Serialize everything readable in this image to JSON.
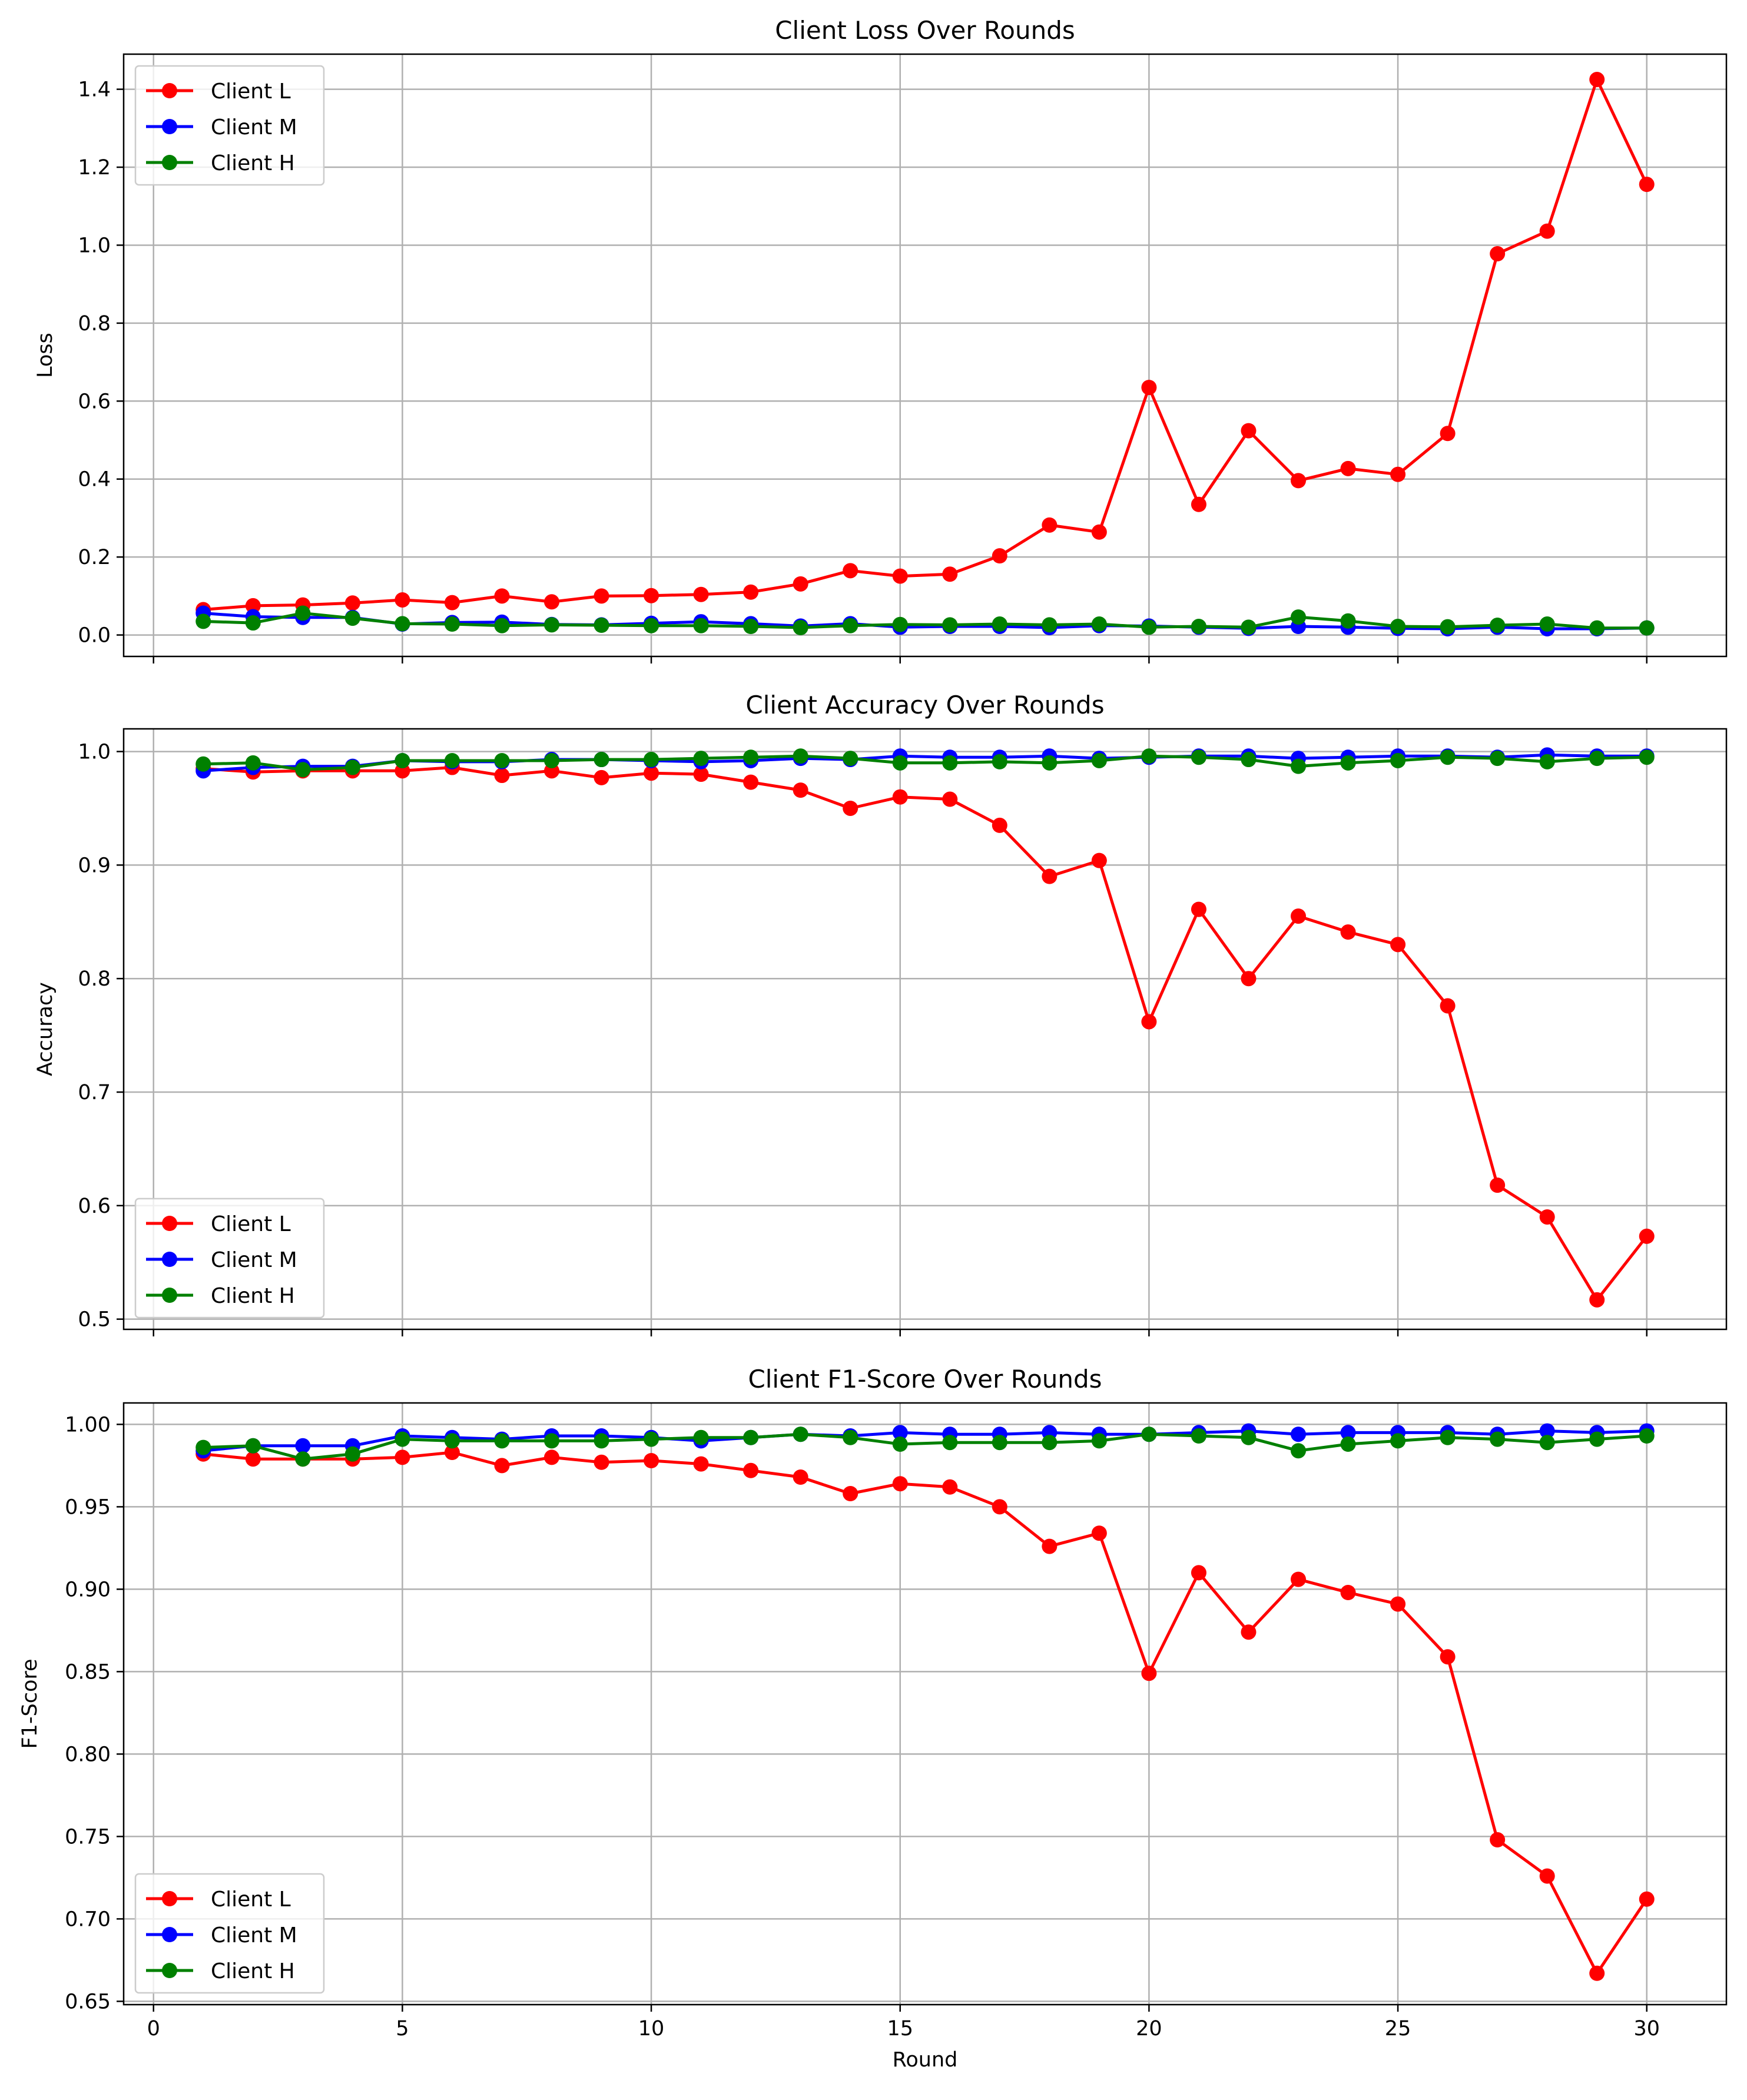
{
  "chart_data": [
    {
      "type": "line",
      "title": "Client Loss Over Rounds",
      "xlabel": "",
      "ylabel": "Loss",
      "xlim": [
        -0.6,
        31.6
      ],
      "ylim": [
        -0.055,
        1.49
      ],
      "xticks": [
        0,
        5,
        10,
        15,
        20,
        25,
        30
      ],
      "xticklabels": [],
      "yticks": [
        0.0,
        0.2,
        0.4,
        0.6,
        0.8,
        1.0,
        1.2,
        1.4
      ],
      "yticklabels": [
        "0.0",
        "0.2",
        "0.4",
        "0.6",
        "0.8",
        "1.0",
        "1.2",
        "1.4"
      ],
      "grid": true,
      "legend": "upper left",
      "x": [
        1,
        2,
        3,
        4,
        5,
        6,
        7,
        8,
        9,
        10,
        11,
        12,
        13,
        14,
        15,
        16,
        17,
        18,
        19,
        20,
        21,
        22,
        23,
        24,
        25,
        26,
        27,
        28,
        29,
        30
      ],
      "series": [
        {
          "name": "Client L",
          "color": "#ff0000",
          "values": [
            0.065,
            0.075,
            0.077,
            0.082,
            0.09,
            0.083,
            0.1,
            0.085,
            0.1,
            0.101,
            0.104,
            0.11,
            0.131,
            0.165,
            0.151,
            0.156,
            0.203,
            0.282,
            0.264,
            0.635,
            0.335,
            0.524,
            0.396,
            0.427,
            0.412,
            0.517,
            0.978,
            1.036,
            1.425,
            1.156
          ]
        },
        {
          "name": "Client M",
          "color": "#0000ff",
          "values": [
            0.056,
            0.047,
            0.045,
            0.045,
            0.028,
            0.032,
            0.033,
            0.027,
            0.026,
            0.03,
            0.034,
            0.029,
            0.023,
            0.029,
            0.02,
            0.022,
            0.022,
            0.019,
            0.024,
            0.023,
            0.02,
            0.017,
            0.022,
            0.02,
            0.017,
            0.016,
            0.02,
            0.016,
            0.016,
            0.018
          ]
        },
        {
          "name": "Client H",
          "color": "#008000",
          "values": [
            0.035,
            0.031,
            0.056,
            0.043,
            0.029,
            0.028,
            0.024,
            0.026,
            0.025,
            0.024,
            0.024,
            0.022,
            0.019,
            0.024,
            0.027,
            0.026,
            0.028,
            0.026,
            0.028,
            0.02,
            0.022,
            0.02,
            0.046,
            0.036,
            0.022,
            0.021,
            0.025,
            0.028,
            0.018,
            0.018
          ]
        }
      ]
    },
    {
      "type": "line",
      "title": "Client Accuracy Over Rounds",
      "xlabel": "",
      "ylabel": "Accuracy",
      "xlim": [
        -0.6,
        31.6
      ],
      "ylim": [
        0.491,
        1.02
      ],
      "xticks": [
        0,
        5,
        10,
        15,
        20,
        25,
        30
      ],
      "xticklabels": [],
      "yticks": [
        0.5,
        0.6,
        0.7,
        0.8,
        0.9,
        1.0
      ],
      "yticklabels": [
        "0.5",
        "0.6",
        "0.7",
        "0.8",
        "0.9",
        "1.0"
      ],
      "grid": true,
      "legend": "lower left",
      "x": [
        1,
        2,
        3,
        4,
        5,
        6,
        7,
        8,
        9,
        10,
        11,
        12,
        13,
        14,
        15,
        16,
        17,
        18,
        19,
        20,
        21,
        22,
        23,
        24,
        25,
        26,
        27,
        28,
        29,
        30
      ],
      "series": [
        {
          "name": "Client L",
          "color": "#ff0000",
          "values": [
            0.985,
            0.982,
            0.983,
            0.983,
            0.983,
            0.986,
            0.979,
            0.983,
            0.977,
            0.981,
            0.98,
            0.973,
            0.966,
            0.95,
            0.96,
            0.958,
            0.935,
            0.89,
            0.904,
            0.762,
            0.861,
            0.8,
            0.855,
            0.841,
            0.83,
            0.776,
            0.618,
            0.59,
            0.517,
            0.573
          ]
        },
        {
          "name": "Client M",
          "color": "#0000ff",
          "values": [
            0.983,
            0.986,
            0.987,
            0.987,
            0.992,
            0.991,
            0.991,
            0.993,
            0.993,
            0.992,
            0.991,
            0.992,
            0.994,
            0.993,
            0.996,
            0.995,
            0.995,
            0.996,
            0.994,
            0.995,
            0.996,
            0.996,
            0.994,
            0.995,
            0.996,
            0.996,
            0.995,
            0.997,
            0.996,
            0.996
          ]
        },
        {
          "name": "Client H",
          "color": "#008000",
          "values": [
            0.989,
            0.99,
            0.984,
            0.986,
            0.992,
            0.992,
            0.992,
            0.992,
            0.993,
            0.993,
            0.994,
            0.995,
            0.996,
            0.994,
            0.99,
            0.99,
            0.991,
            0.99,
            0.992,
            0.996,
            0.995,
            0.993,
            0.987,
            0.99,
            0.992,
            0.995,
            0.994,
            0.991,
            0.994,
            0.995
          ]
        }
      ]
    },
    {
      "type": "line",
      "title": "Client F1-Score Over Rounds",
      "xlabel": "Round",
      "ylabel": "F1-Score",
      "xlim": [
        -0.6,
        31.6
      ],
      "ylim": [
        0.648,
        1.013
      ],
      "xticks": [
        0,
        5,
        10,
        15,
        20,
        25,
        30
      ],
      "xticklabels": [
        "0",
        "5",
        "10",
        "15",
        "20",
        "25",
        "30"
      ],
      "yticks": [
        0.65,
        0.7,
        0.75,
        0.8,
        0.85,
        0.9,
        0.95,
        1.0
      ],
      "yticklabels": [
        "0.65",
        "0.70",
        "0.75",
        "0.80",
        "0.85",
        "0.90",
        "0.95",
        "1.00"
      ],
      "grid": true,
      "legend": "lower left",
      "x": [
        1,
        2,
        3,
        4,
        5,
        6,
        7,
        8,
        9,
        10,
        11,
        12,
        13,
        14,
        15,
        16,
        17,
        18,
        19,
        20,
        21,
        22,
        23,
        24,
        25,
        26,
        27,
        28,
        29,
        30
      ],
      "series": [
        {
          "name": "Client L",
          "color": "#ff0000",
          "values": [
            0.982,
            0.979,
            0.979,
            0.979,
            0.98,
            0.983,
            0.975,
            0.98,
            0.977,
            0.978,
            0.976,
            0.972,
            0.968,
            0.958,
            0.964,
            0.962,
            0.95,
            0.926,
            0.934,
            0.849,
            0.91,
            0.874,
            0.906,
            0.898,
            0.891,
            0.859,
            0.748,
            0.726,
            0.667,
            0.712
          ]
        },
        {
          "name": "Client M",
          "color": "#0000ff",
          "values": [
            0.984,
            0.987,
            0.987,
            0.987,
            0.993,
            0.992,
            0.991,
            0.993,
            0.993,
            0.992,
            0.99,
            0.992,
            0.994,
            0.993,
            0.995,
            0.994,
            0.994,
            0.995,
            0.994,
            0.994,
            0.995,
            0.996,
            0.994,
            0.995,
            0.995,
            0.995,
            0.994,
            0.996,
            0.995,
            0.996
          ]
        },
        {
          "name": "Client H",
          "color": "#008000",
          "values": [
            0.986,
            0.987,
            0.979,
            0.982,
            0.991,
            0.99,
            0.99,
            0.99,
            0.99,
            0.991,
            0.992,
            0.992,
            0.994,
            0.992,
            0.988,
            0.989,
            0.989,
            0.989,
            0.99,
            0.994,
            0.993,
            0.992,
            0.984,
            0.988,
            0.99,
            0.992,
            0.991,
            0.989,
            0.991,
            0.993
          ]
        }
      ]
    }
  ]
}
